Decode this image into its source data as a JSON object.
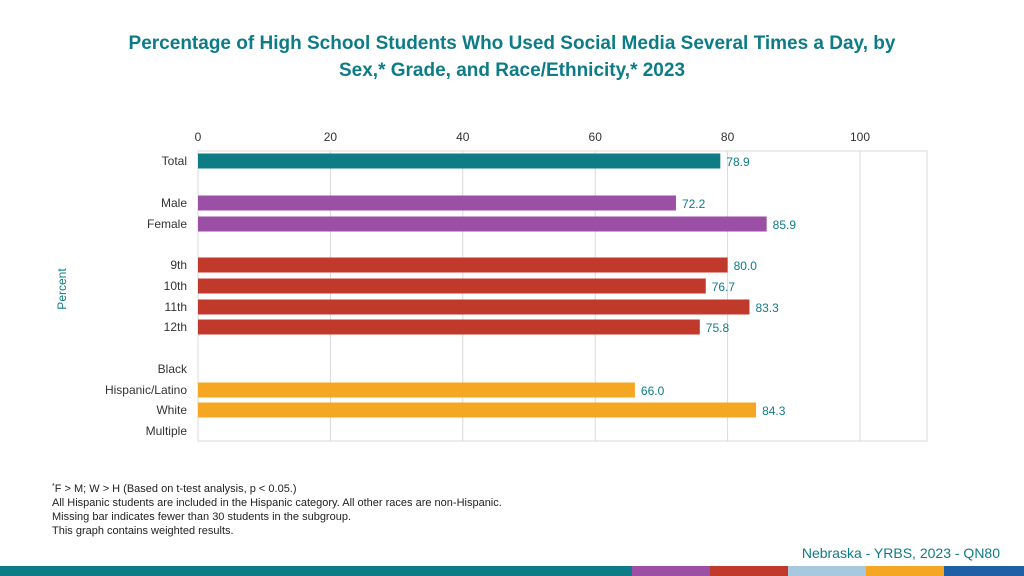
{
  "title_line1": "Percentage of High School Students Who Used Social Media Several Times a Day, by",
  "title_line2": "Sex,* Grade, and Race/Ethnicity,* 2023",
  "notes": {
    "line1_sup": "*",
    "line1": "F > M; W > H (Based on t-test analysis, p < 0.05.)",
    "line2": "All Hispanic students are included in the Hispanic category.  All other races are non-Hispanic.",
    "line3": "Missing bar indicates fewer than 30 students in the subgroup.",
    "line4": "This graph contains weighted results."
  },
  "source": "Nebraska - YRBS, 2023 - QN80",
  "footer_colors": [
    "#0e7c86",
    "#9b4fa5",
    "#c0392b",
    "#a8c8e0",
    "#f5a623",
    "#1f5fa8"
  ],
  "chart_data": {
    "type": "bar",
    "orientation": "horizontal",
    "title": "Percentage of High School Students Who Used Social Media Several Times a Day, by Sex,* Grade, and Race/Ethnicity,* 2023",
    "xlabel": "",
    "ylabel": "Percent",
    "xlim": [
      0,
      110
    ],
    "xticks": [
      0,
      20,
      40,
      60,
      80,
      100
    ],
    "grid": true,
    "categories": [
      "Total",
      "Male",
      "Female",
      "9th",
      "10th",
      "11th",
      "12th",
      "Black",
      "Hispanic/Latino",
      "White",
      "Multiple"
    ],
    "groups": [
      {
        "name": "Total",
        "color": "#0e7c86",
        "items": [
          {
            "label": "Total",
            "value": 78.9,
            "value_label": "78.9"
          }
        ]
      },
      {
        "name": "Sex",
        "color": "#9b4fa5",
        "items": [
          {
            "label": "Male",
            "value": 72.2,
            "value_label": "72.2"
          },
          {
            "label": "Female",
            "value": 85.9,
            "value_label": "85.9"
          }
        ]
      },
      {
        "name": "Grade",
        "color": "#c0392b",
        "items": [
          {
            "label": "9th",
            "value": 80.0,
            "value_label": "80.0"
          },
          {
            "label": "10th",
            "value": 76.7,
            "value_label": "76.7"
          },
          {
            "label": "11th",
            "value": 83.3,
            "value_label": "83.3"
          },
          {
            "label": "12th",
            "value": 75.8,
            "value_label": "75.8"
          }
        ]
      },
      {
        "name": "Race/Ethnicity",
        "color": "#f5a623",
        "items": [
          {
            "label": "Black",
            "value": null,
            "value_label": ""
          },
          {
            "label": "Hispanic/Latino",
            "value": 66.0,
            "value_label": "66.0"
          },
          {
            "label": "White",
            "value": 84.3,
            "value_label": "84.3"
          },
          {
            "label": "Multiple",
            "value": null,
            "value_label": ""
          }
        ]
      }
    ]
  }
}
